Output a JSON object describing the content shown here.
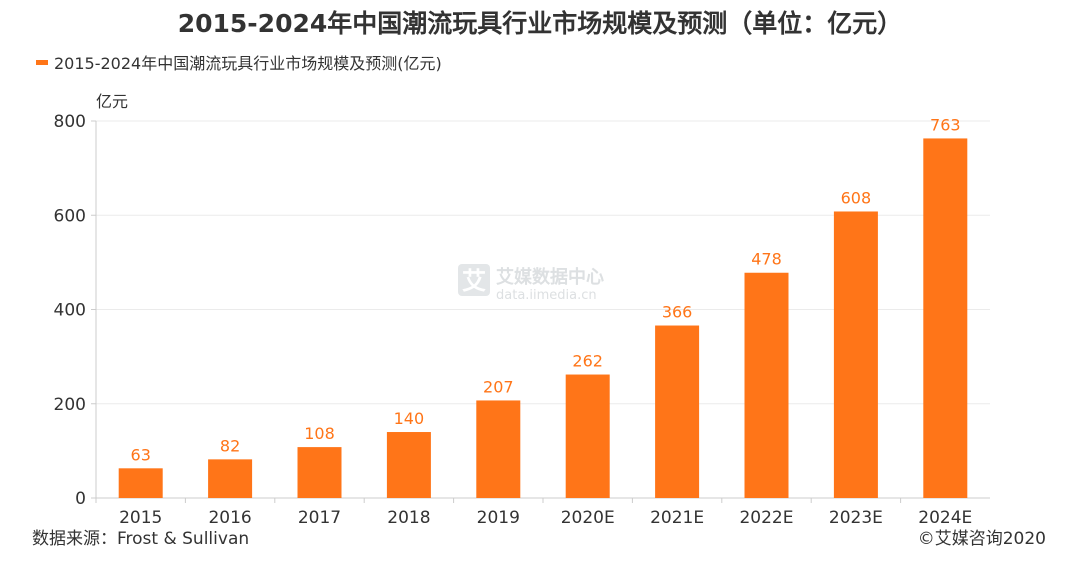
{
  "chart_data": {
    "type": "bar",
    "title": "2015-2024年中国潮流玩具行业市场规模及预测（单位：亿元）",
    "legend": {
      "label": "2015-2024年中国潮流玩具行业市场规模及预测(亿元)",
      "placement": "top-left"
    },
    "ylabel": "亿元",
    "xlabel": "",
    "ylim": [
      0,
      800
    ],
    "yticks": [
      0,
      200,
      400,
      600,
      800
    ],
    "grid": true,
    "categories": [
      "2015",
      "2016",
      "2017",
      "2018",
      "2019",
      "2020E",
      "2021E",
      "2022E",
      "2023E",
      "2024E"
    ],
    "series": [
      {
        "name": "2015-2024年中国潮流玩具行业市场规模及预测(亿元)",
        "values": [
          63,
          82,
          108,
          140,
          207,
          262,
          366,
          478,
          608,
          763
        ]
      }
    ],
    "colors": {
      "bar": "#FF7518",
      "label": "#FF7518",
      "grid": "#EBEBEB",
      "axis": "#CCCCCC"
    }
  },
  "watermark": {
    "brand": "艾媒数据中心",
    "url": "data.iimedia.cn"
  },
  "footer": {
    "source": "数据来源：Frost & Sullivan",
    "copyright": "©艾媒咨询2020"
  }
}
